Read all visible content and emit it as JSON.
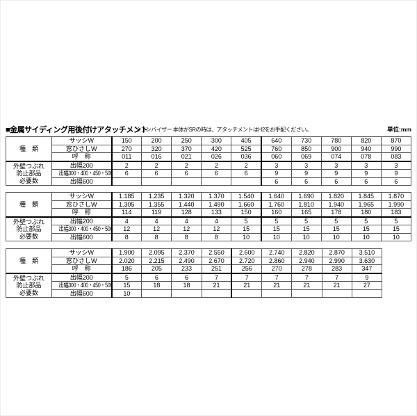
{
  "header": {
    "title": "■金属サイディング用後付けアタッチメント",
    "note": "※コンバイザー 本体がSRの時は、アタッチメントはH2をお手配ください。",
    "unit": "単位:mm"
  },
  "tables": [
    {
      "kind_label": "種　類",
      "parts_label_lines": [
        "外壁つぶれ",
        "防止部品",
        "必要数"
      ],
      "head_rows": [
        {
          "label": "サッシW",
          "values": [
            "150",
            "200",
            "250",
            "300",
            "405",
            "640",
            "730",
            "780",
            "820",
            "870"
          ]
        },
        {
          "label": "窓ひさしW",
          "values": [
            "270",
            "320",
            "370",
            "420",
            "525",
            "760",
            "850",
            "900",
            "940",
            "990"
          ]
        },
        {
          "label": "呼　称",
          "values": [
            "011",
            "016",
            "021",
            "026",
            "036",
            "060",
            "069",
            "074",
            "078",
            "083"
          ]
        }
      ],
      "body_rows": [
        {
          "label": "出幅200",
          "values": [
            "2",
            "2",
            "2",
            "2",
            "2",
            "3",
            "3",
            "3",
            "3",
            "3"
          ]
        },
        {
          "label": "出幅300・400・450・500",
          "values": [
            "6",
            "6",
            "6",
            "6",
            "6",
            "9",
            "9",
            "9",
            "9",
            "9"
          ]
        },
        {
          "label": "出幅600",
          "values": [
            "",
            "",
            "",
            "",
            "",
            "6",
            "6",
            "6",
            "6",
            "6"
          ]
        }
      ],
      "thick_after": 5
    },
    {
      "kind_label": "種　類",
      "parts_label_lines": [
        "外壁つぶれ",
        "防止部品",
        "必要数"
      ],
      "head_rows": [
        {
          "label": "サッシW",
          "values": [
            "1.185",
            "1.235",
            "1.320",
            "1.370",
            "1.540",
            "1.640",
            "1.690",
            "1.820",
            "1.845",
            "1.870"
          ]
        },
        {
          "label": "窓ひさしW",
          "values": [
            "1.305",
            "1.355",
            "1.440",
            "1.490",
            "1.660",
            "1.760",
            "1.810",
            "1.940",
            "1.965",
            "1.990"
          ]
        },
        {
          "label": "呼　称",
          "values": [
            "114",
            "119",
            "128",
            "133",
            "150",
            "160",
            "165",
            "178",
            "180",
            "183"
          ]
        }
      ],
      "body_rows": [
        {
          "label": "出幅200",
          "values": [
            "4",
            "4",
            "4",
            "4",
            "5",
            "5",
            "5",
            "5",
            "5",
            "5"
          ]
        },
        {
          "label": "出幅300・400・450・500",
          "values": [
            "12",
            "12",
            "12",
            "12",
            "15",
            "15",
            "15",
            "15",
            "15",
            "15"
          ]
        },
        {
          "label": "出幅600",
          "values": [
            "8",
            "8",
            "8",
            "8",
            "10",
            "10",
            "10",
            "10",
            "10",
            "10"
          ]
        }
      ],
      "thick_after": 5
    },
    {
      "kind_label": "種　類",
      "parts_label_lines": [
        "外壁つぶれ",
        "防止部品",
        "必要数"
      ],
      "head_rows": [
        {
          "label": "サッシW",
          "values": [
            "1.900",
            "2.095",
            "2.370",
            "2.550",
            "2.600",
            "2.740",
            "2.820",
            "2.870",
            "3.510"
          ]
        },
        {
          "label": "窓ひさしW",
          "values": [
            "2.020",
            "2.215",
            "2.490",
            "2.670",
            "2.720",
            "2.860",
            "2.940",
            "2.990",
            "3.630"
          ]
        },
        {
          "label": "呼　称",
          "values": [
            "186",
            "205",
            "233",
            "251",
            "256",
            "270",
            "278",
            "283",
            "347"
          ]
        }
      ],
      "body_rows": [
        {
          "label": "出幅200",
          "values": [
            "5",
            "6",
            "6",
            "7",
            "7",
            "7",
            "7",
            "7",
            "9"
          ]
        },
        {
          "label": "出幅300・400・450・500",
          "values": [
            "15",
            "18",
            "18",
            "21",
            "21",
            "21",
            "21",
            "21",
            "27"
          ]
        },
        {
          "label": "出幅600",
          "values": [
            "10",
            "",
            "",
            "",
            "",
            "",
            "",
            "",
            ""
          ]
        }
      ],
      "thick_after": 4
    }
  ]
}
